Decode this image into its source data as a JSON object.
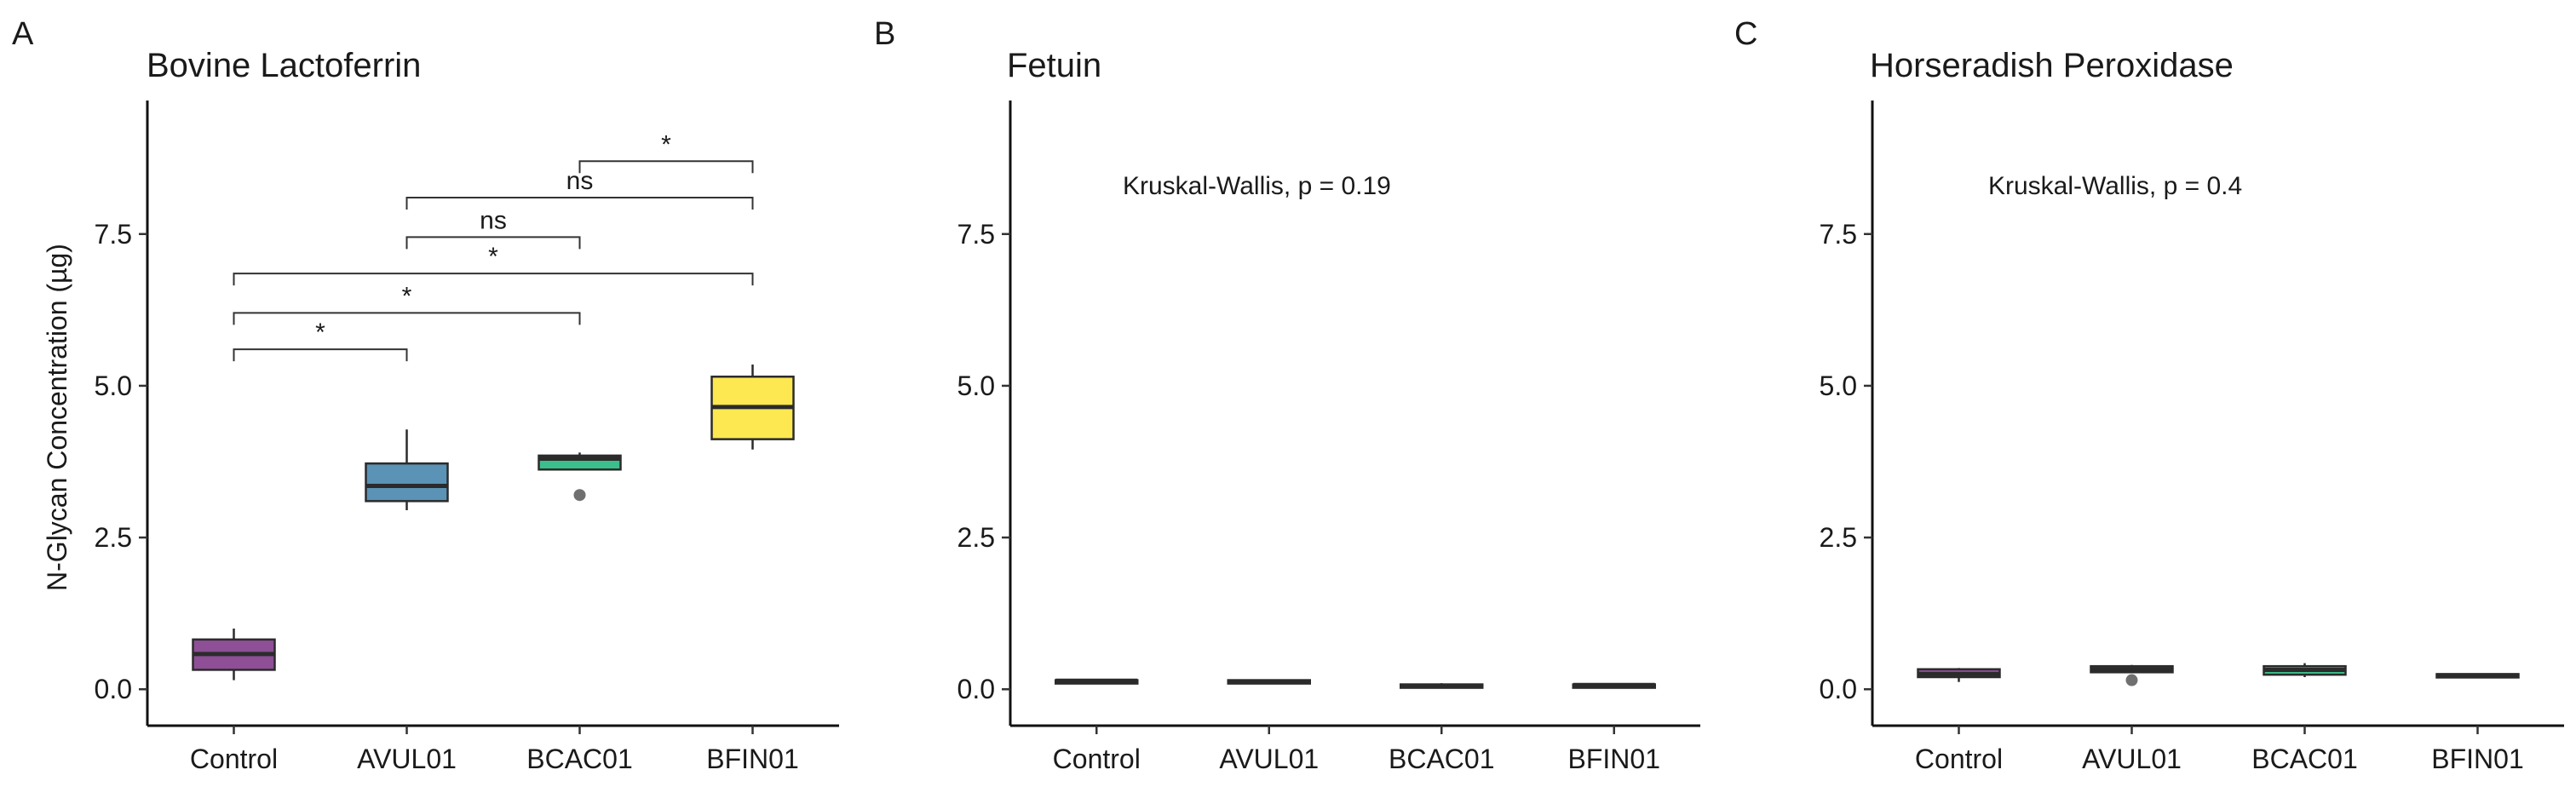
{
  "colors": {
    "Control": "#8e4f96",
    "AVUL01": "#5a93b5",
    "BCAC01": "#3bbf8c",
    "BFIN01": "#fde851",
    "median_dark": "#2b2b2b",
    "outlier": "#707070"
  },
  "chart_data": [
    {
      "type": "boxplot",
      "panel_label": "A",
      "title": "Bovine Lactoferrin",
      "ylabel": "N-Glycan Concentration (µg)",
      "xlabel": "",
      "ylim": [
        -0.6,
        9.7
      ],
      "yticks": [
        0.0,
        2.5,
        5.0,
        7.5
      ],
      "ytick_labels": [
        "0.0",
        "2.5",
        "5.0",
        "7.5"
      ],
      "categories": [
        "Control",
        "AVUL01",
        "BCAC01",
        "BFIN01"
      ],
      "boxes": [
        {
          "category": "Control",
          "min": 0.15,
          "q1": 0.32,
          "median": 0.58,
          "q3": 0.82,
          "max": 1.0,
          "outliers": []
        },
        {
          "category": "AVUL01",
          "min": 2.95,
          "q1": 3.1,
          "median": 3.35,
          "q3": 3.72,
          "max": 4.28,
          "outliers": []
        },
        {
          "category": "BCAC01",
          "min": 3.62,
          "q1": 3.62,
          "median": 3.8,
          "q3": 3.85,
          "max": 3.9,
          "outliers": [
            3.2
          ]
        },
        {
          "category": "BFIN01",
          "min": 3.95,
          "q1": 4.12,
          "median": 4.65,
          "q3": 5.15,
          "max": 5.35,
          "outliers": []
        }
      ],
      "comparisons": [
        {
          "from": "Control",
          "to": "AVUL01",
          "y": 5.6,
          "label": "*"
        },
        {
          "from": "Control",
          "to": "BCAC01",
          "y": 6.2,
          "label": "*"
        },
        {
          "from": "Control",
          "to": "BFIN01",
          "y": 6.85,
          "label": "*"
        },
        {
          "from": "AVUL01",
          "to": "BCAC01",
          "y": 7.45,
          "label": "ns"
        },
        {
          "from": "AVUL01",
          "to": "BFIN01",
          "y": 8.1,
          "label": "ns"
        },
        {
          "from": "BCAC01",
          "to": "BFIN01",
          "y": 8.7,
          "label": "*"
        }
      ],
      "annotation": ""
    },
    {
      "type": "boxplot",
      "panel_label": "B",
      "title": "Fetuin",
      "ylabel": "",
      "xlabel": "",
      "ylim": [
        -0.6,
        9.7
      ],
      "yticks": [
        0.0,
        2.5,
        5.0,
        7.5
      ],
      "ytick_labels": [
        "0.0",
        "2.5",
        "5.0",
        "7.5"
      ],
      "categories": [
        "Control",
        "AVUL01",
        "BCAC01",
        "BFIN01"
      ],
      "boxes": [
        {
          "category": "Control",
          "min": 0.12,
          "q1": 0.12,
          "median": 0.14,
          "q3": 0.15,
          "max": 0.16,
          "outliers": []
        },
        {
          "category": "AVUL01",
          "min": 0.1,
          "q1": 0.11,
          "median": 0.13,
          "q3": 0.15,
          "max": 0.16,
          "outliers": []
        },
        {
          "category": "BCAC01",
          "min": 0.02,
          "q1": 0.03,
          "median": 0.05,
          "q3": 0.08,
          "max": 0.1,
          "outliers": []
        },
        {
          "category": "BFIN01",
          "min": 0.04,
          "q1": 0.05,
          "median": 0.07,
          "q3": 0.08,
          "max": 0.09,
          "outliers": []
        }
      ],
      "comparisons": [],
      "annotation": "Kruskal-Wallis, p = 0.19"
    },
    {
      "type": "boxplot",
      "panel_label": "C",
      "title": "Horseradish Peroxidase",
      "ylabel": "",
      "xlabel": "",
      "ylim": [
        -0.6,
        9.7
      ],
      "yticks": [
        0.0,
        2.5,
        5.0,
        7.5
      ],
      "ytick_labels": [
        "0.0",
        "2.5",
        "5.0",
        "7.5"
      ],
      "categories": [
        "Control",
        "AVUL01",
        "BCAC01",
        "BFIN01"
      ],
      "boxes": [
        {
          "category": "Control",
          "min": 0.12,
          "q1": 0.2,
          "median": 0.25,
          "q3": 0.33,
          "max": 0.35,
          "outliers": []
        },
        {
          "category": "AVUL01",
          "min": 0.28,
          "q1": 0.28,
          "median": 0.33,
          "q3": 0.38,
          "max": 0.4,
          "outliers": [
            0.15
          ]
        },
        {
          "category": "BCAC01",
          "min": 0.2,
          "q1": 0.24,
          "median": 0.32,
          "q3": 0.38,
          "max": 0.43,
          "outliers": []
        },
        {
          "category": "BFIN01",
          "min": 0.2,
          "q1": 0.2,
          "median": 0.23,
          "q3": 0.25,
          "max": 0.26,
          "outliers": []
        }
      ],
      "comparisons": [],
      "annotation": "Kruskal-Wallis, p = 0.4"
    }
  ]
}
